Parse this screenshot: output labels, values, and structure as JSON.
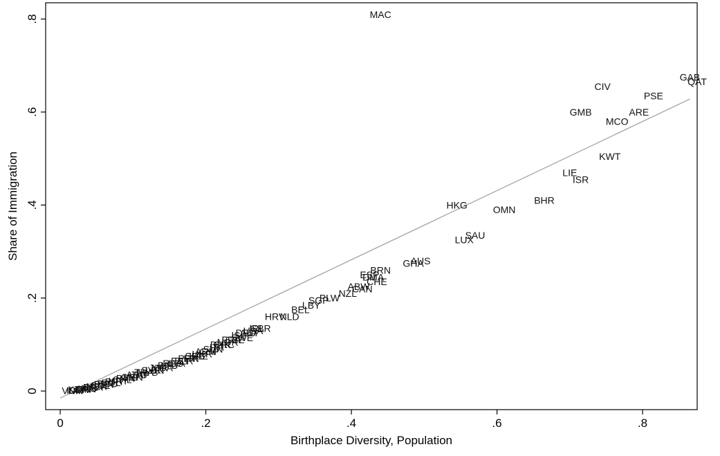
{
  "chart_data": {
    "type": "scatter",
    "title": "",
    "xlabel": "Birthplace Diversity, Population",
    "ylabel": "Share of Immigration",
    "xlim": [
      -0.02,
      0.875
    ],
    "ylim": [
      -0.04,
      0.835
    ],
    "x_ticks": [
      {
        "value": 0,
        "label": "0"
      },
      {
        "value": 0.2,
        "label": ".2"
      },
      {
        "value": 0.4,
        "label": ".4"
      },
      {
        "value": 0.6,
        "label": ".6"
      },
      {
        "value": 0.8,
        "label": ".8"
      }
    ],
    "y_ticks": [
      {
        "value": 0,
        "label": "0"
      },
      {
        "value": 0.2,
        "label": ".2"
      },
      {
        "value": 0.4,
        "label": ".4"
      },
      {
        "value": 0.6,
        "label": ".6"
      },
      {
        "value": 0.8,
        "label": ".8"
      }
    ],
    "grid": false,
    "legend": "none",
    "fit_line": {
      "x": [
        0.0,
        0.865
      ],
      "y": [
        -0.015,
        0.628
      ],
      "color": "#aaaaaa"
    },
    "labeled_points": [
      {
        "label": "MAC",
        "x": 0.44,
        "y": 0.81
      },
      {
        "label": "GAB",
        "x": 0.865,
        "y": 0.675
      },
      {
        "label": "QAT",
        "x": 0.875,
        "y": 0.665
      },
      {
        "label": "CIV",
        "x": 0.745,
        "y": 0.655
      },
      {
        "label": "PSE",
        "x": 0.815,
        "y": 0.635
      },
      {
        "label": "GMB",
        "x": 0.715,
        "y": 0.6
      },
      {
        "label": "ARE",
        "x": 0.795,
        "y": 0.6
      },
      {
        "label": "MCO",
        "x": 0.765,
        "y": 0.58
      },
      {
        "label": "KWT",
        "x": 0.755,
        "y": 0.505
      },
      {
        "label": "LIE",
        "x": 0.7,
        "y": 0.47
      },
      {
        "label": "ISR",
        "x": 0.715,
        "y": 0.455
      },
      {
        "label": "BHR",
        "x": 0.665,
        "y": 0.41
      },
      {
        "label": "HKG",
        "x": 0.545,
        "y": 0.4
      },
      {
        "label": "OMN",
        "x": 0.61,
        "y": 0.39
      },
      {
        "label": "SAU",
        "x": 0.57,
        "y": 0.335
      },
      {
        "label": "LUX",
        "x": 0.555,
        "y": 0.325
      },
      {
        "label": "AUS",
        "x": 0.495,
        "y": 0.28
      },
      {
        "label": "GHA",
        "x": 0.485,
        "y": 0.275
      },
      {
        "label": "BRN",
        "x": 0.44,
        "y": 0.26
      },
      {
        "label": "ESP",
        "x": 0.425,
        "y": 0.25
      },
      {
        "label": "DMA",
        "x": 0.43,
        "y": 0.245
      },
      {
        "label": "CHE",
        "x": 0.435,
        "y": 0.235
      },
      {
        "label": "ABW",
        "x": 0.41,
        "y": 0.225
      },
      {
        "label": "CAN",
        "x": 0.415,
        "y": 0.22
      },
      {
        "label": "NZL",
        "x": 0.395,
        "y": 0.21
      },
      {
        "label": "PLW",
        "x": 0.37,
        "y": 0.2
      },
      {
        "label": "SGP",
        "x": 0.355,
        "y": 0.195
      },
      {
        "label": "LBY",
        "x": 0.345,
        "y": 0.185
      },
      {
        "label": "BEL",
        "x": 0.33,
        "y": 0.175
      },
      {
        "label": "HRV",
        "x": 0.295,
        "y": 0.16
      },
      {
        "label": "NLD",
        "x": 0.315,
        "y": 0.16
      },
      {
        "label": "IRL",
        "x": 0.27,
        "y": 0.135
      },
      {
        "label": "GBR",
        "x": 0.275,
        "y": 0.135
      },
      {
        "label": "USA",
        "x": 0.265,
        "y": 0.13
      },
      {
        "label": "DEU",
        "x": 0.255,
        "y": 0.125
      },
      {
        "label": "ISL",
        "x": 0.245,
        "y": 0.12
      },
      {
        "label": "AUT",
        "x": 0.26,
        "y": 0.125
      },
      {
        "label": "SWE",
        "x": 0.25,
        "y": 0.115
      },
      {
        "label": "CZE",
        "x": 0.24,
        "y": 0.11
      },
      {
        "label": "FRA",
        "x": 0.235,
        "y": 0.11
      },
      {
        "label": "NOR",
        "x": 0.23,
        "y": 0.105
      },
      {
        "label": "GRC",
        "x": 0.225,
        "y": 0.1
      },
      {
        "label": "DNK",
        "x": 0.22,
        "y": 0.1
      },
      {
        "label": "ITA",
        "x": 0.215,
        "y": 0.095
      },
      {
        "label": "SVN",
        "x": 0.21,
        "y": 0.09
      },
      {
        "label": "CYP",
        "x": 0.205,
        "y": 0.085
      },
      {
        "label": "ARM",
        "x": 0.2,
        "y": 0.085
      },
      {
        "label": "UKR",
        "x": 0.195,
        "y": 0.08
      },
      {
        "label": "KAZ",
        "x": 0.19,
        "y": 0.075
      },
      {
        "label": "SRB",
        "x": 0.185,
        "y": 0.075
      },
      {
        "label": "FIN",
        "x": 0.18,
        "y": 0.07
      },
      {
        "label": "PRT",
        "x": 0.175,
        "y": 0.07
      },
      {
        "label": "BLR",
        "x": 0.17,
        "y": 0.065
      },
      {
        "label": "EST",
        "x": 0.165,
        "y": 0.065
      },
      {
        "label": "LVA",
        "x": 0.16,
        "y": 0.06
      },
      {
        "label": "RUS",
        "x": 0.155,
        "y": 0.06
      },
      {
        "label": "LTU",
        "x": 0.15,
        "y": 0.055
      },
      {
        "label": "BIH",
        "x": 0.145,
        "y": 0.055
      },
      {
        "label": "MDA",
        "x": 0.14,
        "y": 0.05
      },
      {
        "label": "JOR",
        "x": 0.135,
        "y": 0.05
      },
      {
        "label": "LBN",
        "x": 0.13,
        "y": 0.045
      },
      {
        "label": "SYR",
        "x": 0.125,
        "y": 0.045
      },
      {
        "label": "MYS",
        "x": 0.12,
        "y": 0.04
      },
      {
        "label": "THA",
        "x": 0.115,
        "y": 0.04
      },
      {
        "label": "ZAF",
        "x": 0.11,
        "y": 0.035
      },
      {
        "label": "ARG",
        "x": 0.105,
        "y": 0.035
      },
      {
        "label": "VEN",
        "x": 0.1,
        "y": 0.03
      },
      {
        "label": "CRI",
        "x": 0.095,
        "y": 0.03
      },
      {
        "label": "PAN",
        "x": 0.09,
        "y": 0.028
      },
      {
        "label": "CHL",
        "x": 0.085,
        "y": 0.025
      },
      {
        "label": "URY",
        "x": 0.08,
        "y": 0.022
      },
      {
        "label": "PRY",
        "x": 0.075,
        "y": 0.02
      },
      {
        "label": "BOL",
        "x": 0.07,
        "y": 0.018
      },
      {
        "label": "ECU",
        "x": 0.065,
        "y": 0.016
      },
      {
        "label": "PER",
        "x": 0.06,
        "y": 0.014
      },
      {
        "label": "COL",
        "x": 0.055,
        "y": 0.012
      },
      {
        "label": "MEX",
        "x": 0.05,
        "y": 0.01
      },
      {
        "label": "BRA",
        "x": 0.045,
        "y": 0.008
      },
      {
        "label": "IND",
        "x": 0.04,
        "y": 0.006
      },
      {
        "label": "CHN",
        "x": 0.035,
        "y": 0.005
      },
      {
        "label": "JPN",
        "x": 0.03,
        "y": 0.004
      },
      {
        "label": "KOR",
        "x": 0.025,
        "y": 0.003
      },
      {
        "label": "IDN",
        "x": 0.02,
        "y": 0.002
      },
      {
        "label": "VNM",
        "x": 0.017,
        "y": 0.001
      }
    ],
    "points_color": "#111111"
  }
}
